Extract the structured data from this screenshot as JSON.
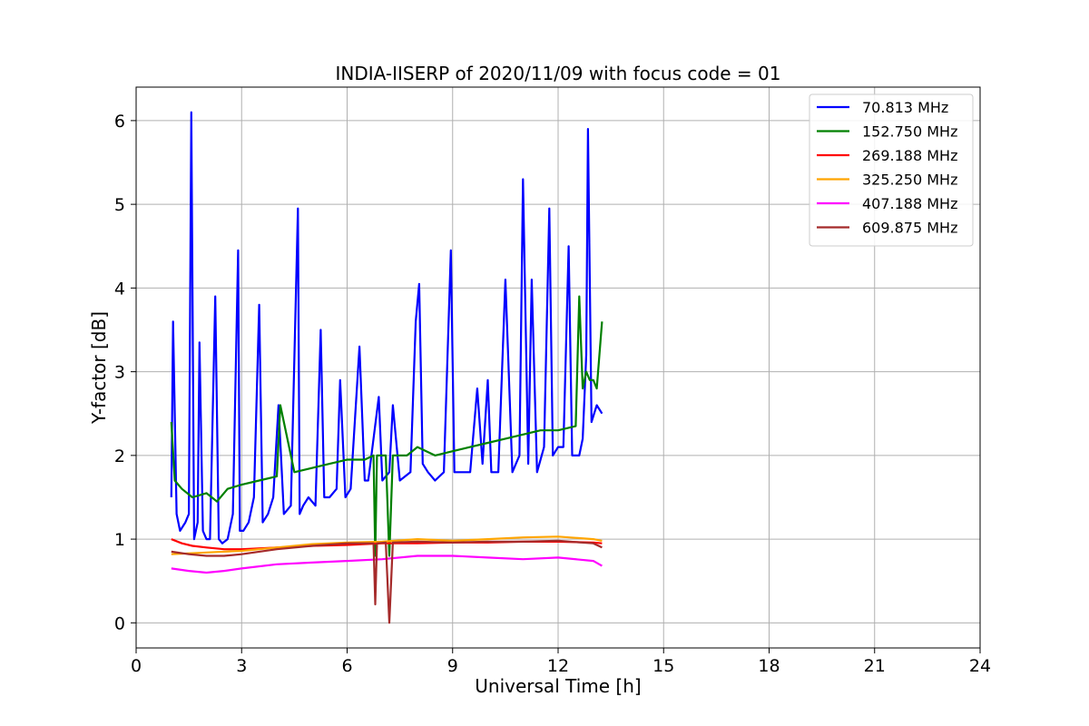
{
  "chart_data": {
    "type": "line",
    "title": "INDIA-IISERP of 2020/11/09 with focus code = 01",
    "xlabel": "Universal Time [h]",
    "ylabel": "Y-factor [dB]",
    "xlim": [
      0,
      24
    ],
    "ylim": [
      -0.3,
      6.4
    ],
    "xticks": [
      0,
      3,
      6,
      9,
      12,
      15,
      18,
      21,
      24
    ],
    "yticks": [
      0,
      1,
      2,
      3,
      4,
      5,
      6
    ],
    "grid": true,
    "legend_position": "top-right",
    "series": [
      {
        "name": " 70.813 MHz",
        "color": "#0000ff",
        "x": [
          1.0,
          1.05,
          1.15,
          1.25,
          1.4,
          1.5,
          1.57,
          1.65,
          1.75,
          1.8,
          1.9,
          2.0,
          2.1,
          2.25,
          2.35,
          2.45,
          2.6,
          2.75,
          2.9,
          2.95,
          3.05,
          3.2,
          3.35,
          3.5,
          3.6,
          3.75,
          3.9,
          4.05,
          4.2,
          4.4,
          4.6,
          4.65,
          4.75,
          4.9,
          5.1,
          5.25,
          5.35,
          5.5,
          5.7,
          5.8,
          5.95,
          6.1,
          6.35,
          6.5,
          6.6,
          6.9,
          7.0,
          7.2,
          7.3,
          7.5,
          7.8,
          7.95,
          8.05,
          8.15,
          8.3,
          8.5,
          8.75,
          8.95,
          9.05,
          9.2,
          9.5,
          9.7,
          9.85,
          10.0,
          10.1,
          10.3,
          10.5,
          10.7,
          10.9,
          11.0,
          11.15,
          11.25,
          11.4,
          11.6,
          11.75,
          11.85,
          12.0,
          12.15,
          12.3,
          12.4,
          12.6,
          12.7,
          12.8,
          12.85,
          12.95,
          13.1,
          13.25
        ],
        "y": [
          1.5,
          3.6,
          1.3,
          1.1,
          1.2,
          1.3,
          6.1,
          1.0,
          1.2,
          3.35,
          1.1,
          1.0,
          1.0,
          3.9,
          1.0,
          0.95,
          1.0,
          1.3,
          4.45,
          1.1,
          1.1,
          1.2,
          1.5,
          3.8,
          1.2,
          1.3,
          1.5,
          2.6,
          1.3,
          1.4,
          4.95,
          1.3,
          1.4,
          1.5,
          1.4,
          3.5,
          1.5,
          1.5,
          1.6,
          2.9,
          1.5,
          1.6,
          3.3,
          1.7,
          1.7,
          2.7,
          1.7,
          1.8,
          2.6,
          1.7,
          1.8,
          3.6,
          4.05,
          1.9,
          1.8,
          1.7,
          1.8,
          4.45,
          1.8,
          1.8,
          1.8,
          2.8,
          1.9,
          2.9,
          1.8,
          1.8,
          4.1,
          1.8,
          2.0,
          5.3,
          1.9,
          4.1,
          1.8,
          2.1,
          4.95,
          2.0,
          2.1,
          2.1,
          4.5,
          2.0,
          2.0,
          2.2,
          3.2,
          5.9,
          2.4,
          2.6,
          2.5
        ]
      },
      {
        "name": "152.750 MHz",
        "color": "#008000",
        "x": [
          1.0,
          1.1,
          1.3,
          1.6,
          2.0,
          2.3,
          2.6,
          3.0,
          3.5,
          4.0,
          4.1,
          4.5,
          5.0,
          5.5,
          6.0,
          6.5,
          6.75,
          6.8,
          6.85,
          7.1,
          7.2,
          7.3,
          7.7,
          8.0,
          8.5,
          9.0,
          9.5,
          10.0,
          10.5,
          11.0,
          11.5,
          12.0,
          12.5,
          12.6,
          12.7,
          12.8,
          12.9,
          13.0,
          13.1,
          13.25
        ],
        "y": [
          2.4,
          1.7,
          1.6,
          1.5,
          1.55,
          1.45,
          1.6,
          1.65,
          1.7,
          1.75,
          2.6,
          1.8,
          1.85,
          1.9,
          1.95,
          1.95,
          2.0,
          0.8,
          2.0,
          2.0,
          0.8,
          2.0,
          2.0,
          2.1,
          2.0,
          2.05,
          2.1,
          2.15,
          2.2,
          2.25,
          2.3,
          2.3,
          2.35,
          3.9,
          2.8,
          3.0,
          2.9,
          2.9,
          2.8,
          3.6
        ]
      },
      {
        "name": "269.188 MHz",
        "color": "#ff0000",
        "x": [
          1.0,
          1.3,
          1.6,
          2.0,
          2.5,
          3.0,
          4.0,
          5.0,
          6.0,
          7.0,
          8.0,
          9.0,
          10.0,
          11.0,
          12.0,
          13.0,
          13.25
        ],
        "y": [
          1.0,
          0.95,
          0.92,
          0.9,
          0.88,
          0.88,
          0.9,
          0.92,
          0.93,
          0.95,
          0.95,
          0.96,
          0.96,
          0.97,
          0.97,
          0.96,
          0.95
        ]
      },
      {
        "name": "325.250 MHz",
        "color": "#ffa500",
        "x": [
          1.0,
          2.0,
          3.0,
          4.0,
          5.0,
          6.0,
          7.0,
          8.0,
          9.0,
          10.0,
          11.0,
          12.0,
          13.0,
          13.25
        ],
        "y": [
          0.82,
          0.84,
          0.86,
          0.9,
          0.94,
          0.96,
          0.97,
          1.0,
          0.98,
          1.0,
          1.02,
          1.03,
          1.0,
          0.98
        ]
      },
      {
        "name": "407.188 MHz",
        "color": "#ff00ff",
        "x": [
          1.0,
          1.5,
          2.0,
          2.5,
          3.0,
          4.0,
          5.0,
          6.0,
          7.0,
          8.0,
          9.0,
          10.0,
          11.0,
          12.0,
          13.0,
          13.25
        ],
        "y": [
          0.65,
          0.62,
          0.6,
          0.62,
          0.65,
          0.7,
          0.72,
          0.74,
          0.76,
          0.8,
          0.8,
          0.78,
          0.76,
          0.78,
          0.74,
          0.68
        ]
      },
      {
        "name": "609.875 MHz",
        "color": "#a52a2a",
        "x": [
          1.0,
          1.5,
          2.0,
          2.5,
          3.0,
          4.0,
          5.0,
          6.0,
          6.75,
          6.8,
          6.85,
          7.1,
          7.2,
          7.3,
          8.0,
          9.0,
          10.0,
          11.0,
          12.0,
          13.0,
          13.25
        ],
        "y": [
          0.85,
          0.82,
          0.8,
          0.8,
          0.82,
          0.88,
          0.92,
          0.95,
          0.95,
          0.22,
          0.95,
          0.96,
          0.0,
          0.96,
          0.97,
          0.96,
          0.97,
          0.97,
          0.98,
          0.95,
          0.9
        ]
      }
    ]
  }
}
